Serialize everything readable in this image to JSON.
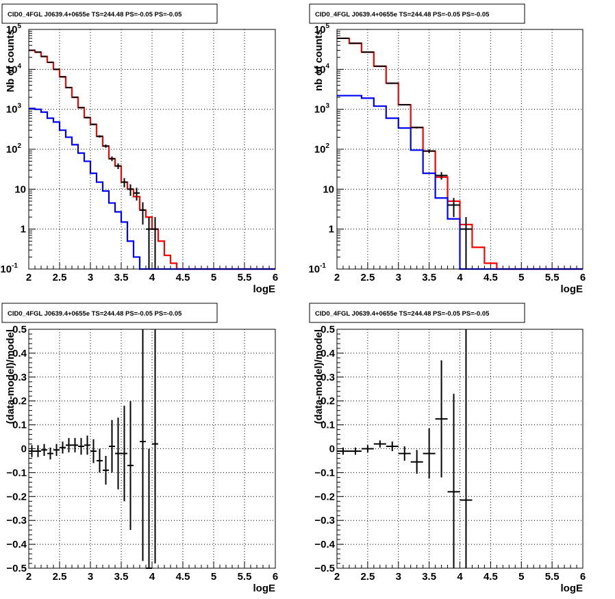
{
  "chart_data": [
    {
      "type": "histogram",
      "title": "CID0_4FGL J0639.4+0655e TS=244.48 PS=-0.05 PS=-0.05",
      "xlabel": "logE",
      "ylabel": "Nb of counts",
      "log_y": true,
      "xlim": [
        2,
        6
      ],
      "ylim": [
        0.1,
        100000
      ],
      "x_ticks": [
        "2",
        "2.5",
        "3",
        "3.5",
        "4",
        "4.5",
        "5",
        "5.5",
        "6"
      ],
      "y_ticks": [
        "10^-1",
        "1",
        "10",
        "10^2",
        "10^3",
        "10^4",
        "10^5"
      ],
      "grid": true,
      "bin_edges": [
        2.0,
        2.1,
        2.2,
        2.3,
        2.4,
        2.5,
        2.6,
        2.7,
        2.8,
        2.9,
        3.0,
        3.1,
        3.2,
        3.3,
        3.4,
        3.5,
        3.6,
        3.7,
        3.8,
        3.9,
        4.0,
        4.1,
        4.2,
        4.3,
        4.4,
        4.5,
        4.6,
        4.7,
        4.8,
        4.9,
        5.0,
        5.1,
        5.2,
        5.3,
        5.4,
        5.5,
        5.6,
        5.7,
        5.8,
        5.9,
        6.0
      ],
      "series": [
        {
          "color": "#ff0000",
          "values": [
            30000,
            27000,
            21000,
            15000,
            10000,
            6500,
            3500,
            2000,
            1100,
            620,
            420,
            210,
            120,
            58,
            38,
            15,
            10,
            6.5,
            3,
            2,
            1,
            0.5,
            0.22,
            0.14,
            0.1,
            0.1,
            0.1,
            0.1,
            0.1,
            0.1,
            0.1,
            0.1,
            0.1,
            0.1,
            0.1,
            0.1,
            0.1,
            0.1,
            0.1,
            0.1
          ]
        },
        {
          "color": "#0000ff",
          "values": [
            1050,
            1000,
            850,
            600,
            480,
            300,
            200,
            130,
            80,
            50,
            25,
            15,
            9,
            4.5,
            2.7,
            1.5,
            0.5,
            0.2,
            0.1,
            0.1,
            0.1,
            0.1,
            0.1,
            0.1,
            0.1,
            0.1,
            0.1,
            0.1,
            0.1,
            0.1,
            0.1,
            0.1,
            0.1,
            0.1,
            0.1,
            0.1,
            0.1,
            0.1,
            0.1,
            0.1
          ]
        }
      ],
      "data_points": {
        "color": "#000000",
        "x": [
          2.05,
          2.15,
          2.25,
          2.35,
          2.45,
          2.55,
          2.65,
          2.75,
          2.85,
          2.95,
          3.05,
          3.15,
          3.25,
          3.35,
          3.45,
          3.55,
          3.65,
          3.75,
          3.85,
          3.95,
          4.05
        ],
        "y": [
          30000,
          27000,
          21000,
          15000,
          10000,
          6500,
          3500,
          2000,
          1100,
          620,
          420,
          210,
          120,
          58,
          38,
          15,
          10,
          8,
          3,
          1,
          1
        ],
        "err_low": [
          174,
          164,
          145,
          122,
          100,
          81,
          59,
          45,
          33,
          25,
          20,
          14,
          11,
          7.6,
          6.2,
          3.9,
          3.2,
          2.8,
          1.7,
          0.99,
          0.99
        ],
        "err_high": [
          174,
          164,
          145,
          122,
          100,
          81,
          59,
          45,
          33,
          25,
          20,
          14,
          11,
          7.6,
          6.2,
          3.9,
          3.2,
          2.8,
          1.7,
          1.0,
          1.0
        ],
        "xerr": 0.05
      }
    },
    {
      "type": "histogram",
      "title": "CID0_4FGL J0639.4+0655e TS=244.48 PS=-0.05 PS=-0.05",
      "xlabel": "logE",
      "ylabel": "nb of counts",
      "log_y": true,
      "xlim": [
        2,
        6
      ],
      "ylim": [
        0.1,
        100000
      ],
      "x_ticks": [
        "2",
        "2.5",
        "3",
        "3.5",
        "4",
        "4.5",
        "5",
        "5.5",
        "6"
      ],
      "y_ticks": [
        "10^-1",
        "1",
        "10",
        "10^2",
        "10^3",
        "10^4",
        "10^5"
      ],
      "grid": true,
      "bin_edges": [
        2.0,
        2.2,
        2.4,
        2.6,
        2.8,
        3.0,
        3.2,
        3.4,
        3.6,
        3.8,
        4.0,
        4.2,
        4.4,
        4.6,
        4.8,
        5.0,
        5.2,
        5.4,
        5.6,
        5.8,
        6.0
      ],
      "series": [
        {
          "color": "#ff0000",
          "values": [
            60000,
            45000,
            27000,
            12000,
            4500,
            1300,
            350,
            90,
            20,
            5,
            1.3,
            0.35,
            0.14,
            0.1,
            0.1,
            0.1,
            0.1,
            0.1,
            0.1,
            0.1
          ]
        },
        {
          "color": "#0000ff",
          "values": [
            2200,
            2200,
            1900,
            1200,
            600,
            340,
            95,
            25,
            6,
            1.8,
            0.1,
            0.1,
            0.1,
            0.1,
            0.1,
            0.1,
            0.1,
            0.1,
            0.1,
            0.1
          ]
        }
      ],
      "data_points": {
        "color": "#000000",
        "x": [
          2.1,
          2.3,
          2.5,
          2.7,
          2.9,
          3.1,
          3.3,
          3.5,
          3.7,
          3.9,
          4.1
        ],
        "y": [
          60000,
          45000,
          27000,
          12000,
          4500,
          1300,
          350,
          90,
          22,
          4,
          1
        ],
        "err_low": [
          245,
          212,
          164,
          110,
          67,
          36,
          19,
          9.5,
          4.7,
          2,
          0.99
        ],
        "err_high": [
          245,
          212,
          164,
          110,
          67,
          36,
          19,
          9.5,
          4.7,
          2,
          1.0
        ],
        "xerr": 0.1
      }
    },
    {
      "type": "scatter",
      "title": "CID0_4FGL J0639.4+0655e TS=244.48 PS=-0.05 PS=-0.05",
      "xlabel": "logE",
      "ylabel": "(data-model)/model",
      "xlim": [
        2,
        6
      ],
      "ylim": [
        -0.5,
        0.5
      ],
      "x_ticks": [
        "2",
        "2.5",
        "3",
        "3.5",
        "4",
        "4.5",
        "5",
        "5.5",
        "6"
      ],
      "y_ticks": [
        "-0.5",
        "-0.4",
        "-0.3",
        "-0.2",
        "-0.1",
        "0",
        "0.1",
        "0.2",
        "0.3",
        "0.4",
        "0.5"
      ],
      "grid": true,
      "points": {
        "color": "#000000",
        "x": [
          2.05,
          2.15,
          2.25,
          2.35,
          2.45,
          2.55,
          2.65,
          2.75,
          2.85,
          2.95,
          3.05,
          3.15,
          3.25,
          3.35,
          3.45,
          3.55,
          3.65,
          3.85,
          3.95,
          4.05
        ],
        "y": [
          -0.01,
          -0.01,
          -0.005,
          -0.02,
          -0.005,
          0.005,
          0.015,
          0.015,
          0.01,
          0.015,
          -0.01,
          -0.05,
          -0.09,
          0.01,
          -0.02,
          -0.02,
          -0.07,
          0.03,
          -0.5,
          0.02
        ],
        "err": [
          0.025,
          0.025,
          0.025,
          0.025,
          0.025,
          0.025,
          0.03,
          0.03,
          0.035,
          0.04,
          0.05,
          0.05,
          0.06,
          0.11,
          0.15,
          0.2,
          0.27,
          0.5,
          0.5,
          0.5
        ],
        "xerr": 0.05
      }
    },
    {
      "type": "scatter",
      "title": "CID0_4FGL J0639.4+0655e TS=244.48 PS=-0.05 PS=-0.05",
      "xlabel": "logE",
      "ylabel": "(data-model)/model",
      "xlim": [
        2,
        6
      ],
      "ylim": [
        -0.5,
        0.5
      ],
      "x_ticks": [
        "2",
        "2.5",
        "3",
        "3.5",
        "4",
        "4.5",
        "5",
        "5.5",
        "6"
      ],
      "y_ticks": [
        "-0.5",
        "-0.4",
        "-0.3",
        "-0.2",
        "-0.1",
        "0",
        "0.1",
        "0.2",
        "0.3",
        "0.4",
        "0.5"
      ],
      "grid": true,
      "points": {
        "color": "#000000",
        "x": [
          2.1,
          2.3,
          2.5,
          2.7,
          2.9,
          3.1,
          3.3,
          3.5,
          3.7,
          3.9,
          4.1
        ],
        "y": [
          -0.01,
          -0.01,
          0.0,
          0.02,
          0.01,
          -0.02,
          -0.055,
          -0.02,
          0.125,
          -0.18,
          -0.215
        ],
        "err": [
          0.015,
          0.015,
          0.015,
          0.015,
          0.02,
          0.03,
          0.05,
          0.105,
          0.245,
          0.41,
          0.8
        ],
        "xerr": 0.1
      }
    }
  ]
}
